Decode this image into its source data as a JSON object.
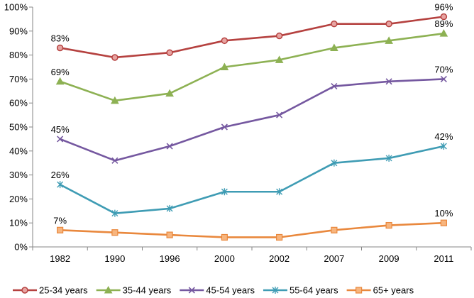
{
  "chart_data": {
    "type": "line",
    "title": "",
    "xlabel": "",
    "ylabel": "",
    "categories": [
      "1982",
      "1990",
      "1996",
      "2000",
      "2002",
      "2007",
      "2009",
      "2011"
    ],
    "ylim": [
      0,
      100
    ],
    "yticks": [
      0,
      10,
      20,
      30,
      40,
      50,
      60,
      70,
      80,
      90,
      100
    ],
    "ytick_labels": [
      "0%",
      "10%",
      "20%",
      "30%",
      "40%",
      "50%",
      "60%",
      "70%",
      "80%",
      "90%",
      "100%"
    ],
    "grid": false,
    "legend_position": "bottom",
    "series": [
      {
        "name": "25-34 years",
        "color": "#B5413F",
        "marker": "circle",
        "values": [
          83,
          79,
          81,
          86,
          88,
          93,
          93,
          96
        ],
        "start_label": "83%",
        "end_label": "96%"
      },
      {
        "name": "35-44 years",
        "color": "#8DB153",
        "marker": "triangle",
        "values": [
          69,
          61,
          64,
          75,
          78,
          83,
          86,
          89
        ],
        "start_label": "69%",
        "end_label": "89%"
      },
      {
        "name": "45-54 years",
        "color": "#7558A0",
        "marker": "x",
        "values": [
          45,
          36,
          42,
          50,
          55,
          67,
          69,
          70
        ],
        "start_label": "45%",
        "end_label": "70%"
      },
      {
        "name": "55-64 years",
        "color": "#3F9CB4",
        "marker": "star",
        "values": [
          26,
          14,
          16,
          23,
          23,
          35,
          37,
          42
        ],
        "start_label": "26%",
        "end_label": "42%"
      },
      {
        "name": "65+ years",
        "color": "#E9883D",
        "marker": "square",
        "values": [
          7,
          6,
          5,
          4,
          4,
          7,
          9,
          10
        ],
        "start_label": "7%",
        "end_label": "10%"
      }
    ]
  }
}
